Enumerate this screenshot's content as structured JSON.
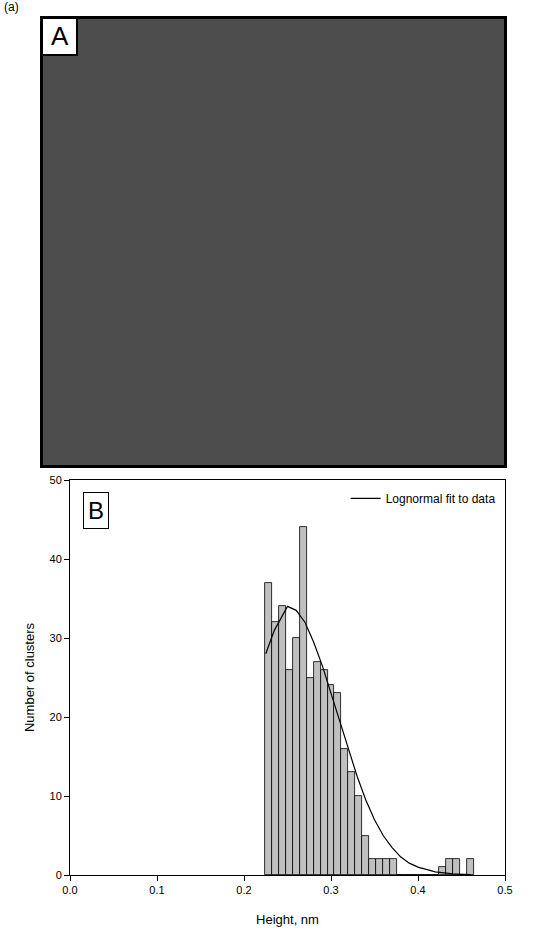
{
  "caption": "(a)",
  "image_panel": {
    "label": "A"
  },
  "chart_data": {
    "type": "histogram",
    "panel_label": "B",
    "xlabel": "Height, nm",
    "ylabel": "Number of clusters",
    "bins": [
      0.224,
      0.232,
      0.24,
      0.248,
      0.256,
      0.264,
      0.272,
      0.28,
      0.288,
      0.296,
      0.304,
      0.312,
      0.32,
      0.328,
      0.336,
      0.344,
      0.352,
      0.36,
      0.368,
      0.376,
      0.384,
      0.392,
      0.4,
      0.408,
      0.416,
      0.424,
      0.432,
      0.44,
      0.448,
      0.456,
      0.464
    ],
    "values": [
      37,
      32,
      34,
      26,
      30,
      44,
      25,
      27,
      26,
      24,
      23,
      16,
      13,
      10,
      5,
      2,
      2,
      2,
      2,
      0,
      0,
      0,
      0,
      0,
      0,
      1,
      2,
      2,
      0,
      2
    ],
    "color": "#c0c0c0",
    "series": [
      {
        "name": "Lognormal fit to data",
        "type": "line",
        "color": "#000000",
        "x": [
          0.225,
          0.235,
          0.25,
          0.26,
          0.27,
          0.28,
          0.29,
          0.3,
          0.31,
          0.32,
          0.33,
          0.34,
          0.35,
          0.36,
          0.37,
          0.38,
          0.39,
          0.4,
          0.42,
          0.44,
          0.46
        ],
        "values": [
          28,
          31,
          34,
          33.5,
          32,
          29.5,
          26.5,
          23,
          19.5,
          16,
          12.5,
          9.5,
          7,
          5,
          3.5,
          2.3,
          1.5,
          1,
          0.4,
          0.15,
          0.05
        ]
      }
    ],
    "xlim": [
      0,
      0.5
    ],
    "ylim": [
      0,
      50
    ],
    "xticks": [
      {
        "value": 0,
        "label": "0.0"
      },
      0.1,
      0.2,
      0.3,
      0.4,
      0.5
    ],
    "yticks": [
      0,
      10,
      20,
      30,
      40,
      50
    ],
    "legend": "top right",
    "grid": false
  }
}
